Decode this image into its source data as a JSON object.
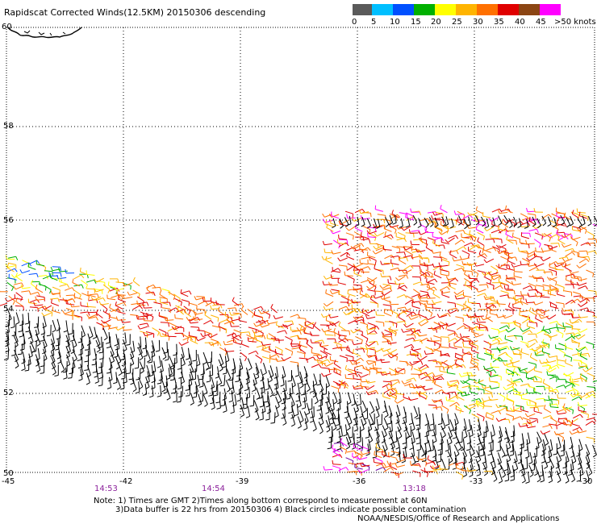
{
  "title": "Rapidscat Corrected Winds(12.5KM) 20150306 descending",
  "legend": {
    "labels": [
      "0",
      "5",
      "10",
      "15",
      "20",
      "25",
      "30",
      "35",
      "40",
      "45",
      ">50 knots"
    ],
    "colors": [
      "#5a5a5a",
      "#00bfff",
      "#0050ff",
      "#00b000",
      "#ffff00",
      "#ffb400",
      "#ff7000",
      "#e00000",
      "#8b4513",
      "#ff00ff",
      "#6a00a0"
    ]
  },
  "axes": {
    "x_ticks": [
      "-45",
      "-42",
      "-39",
      "-36",
      "-33",
      "-30"
    ],
    "y_ticks": [
      "60",
      "58",
      "56",
      "54",
      "52",
      "50"
    ]
  },
  "pass_times": [
    "14:53",
    "14:54",
    "13:18"
  ],
  "notes": {
    "line1": "Note: 1) Times are GMT 2)Times along bottom correspond to measurement at 60N",
    "line2": "3)Data buffer is 22 hrs from 20150306 4) Black circles indicate possible contamination",
    "credit": "NOAA/NESDIS/Office of Research and Applications"
  },
  "colors": {
    "grid": "#000000",
    "coast": "#000000",
    "time_label": "#8a1f9a"
  }
}
